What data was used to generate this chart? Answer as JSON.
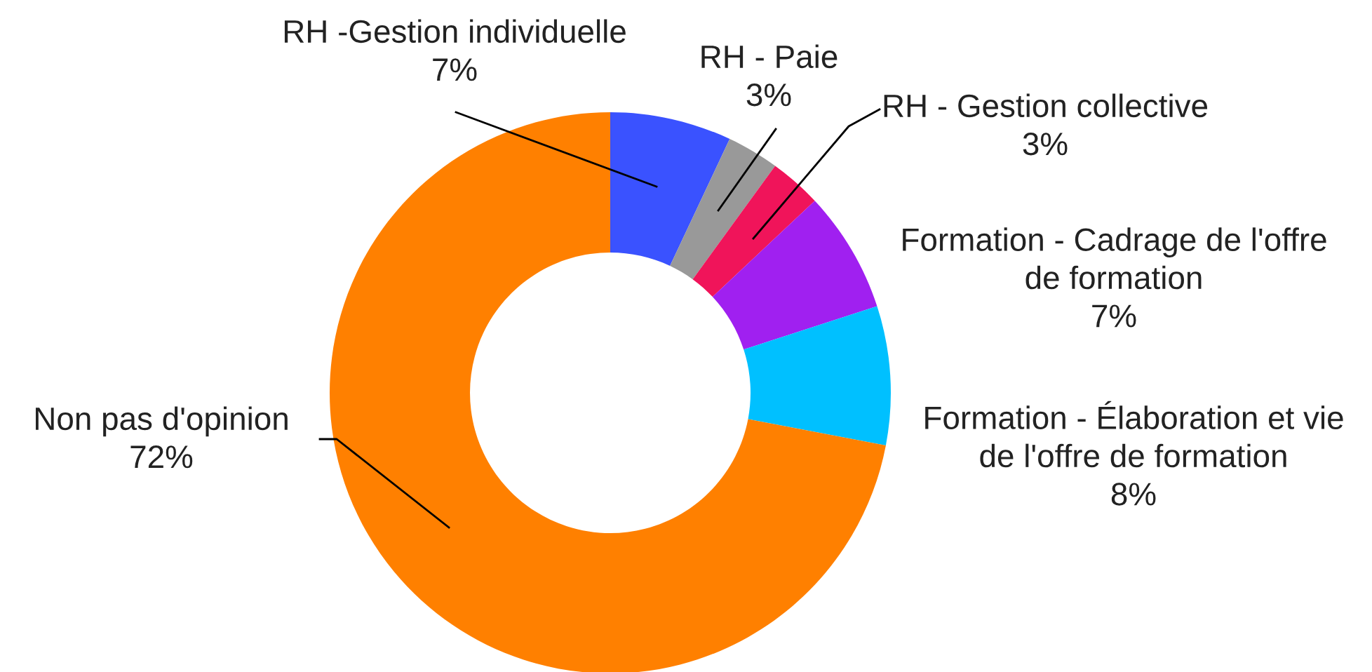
{
  "chart_data": {
    "type": "donut",
    "categories": [
      "RH -Gestion individuelle",
      "RH - Paie",
      "RH - Gestion collective",
      "Formation - Cadrage de l'offre de formation",
      "Formation - Élaboration et vie de l'offre de formation",
      "Non pas d'opinion"
    ],
    "values": [
      7,
      3,
      3,
      7,
      8,
      72
    ],
    "colors": [
      "#3a52ff",
      "#999999",
      "#f0145a",
      "#a020f0",
      "#00c0ff",
      "#ff8000"
    ],
    "data_labels": true,
    "value_labels": [
      "7%",
      "3%",
      "3%",
      "7%",
      "8%",
      "72%"
    ],
    "legend": false
  }
}
